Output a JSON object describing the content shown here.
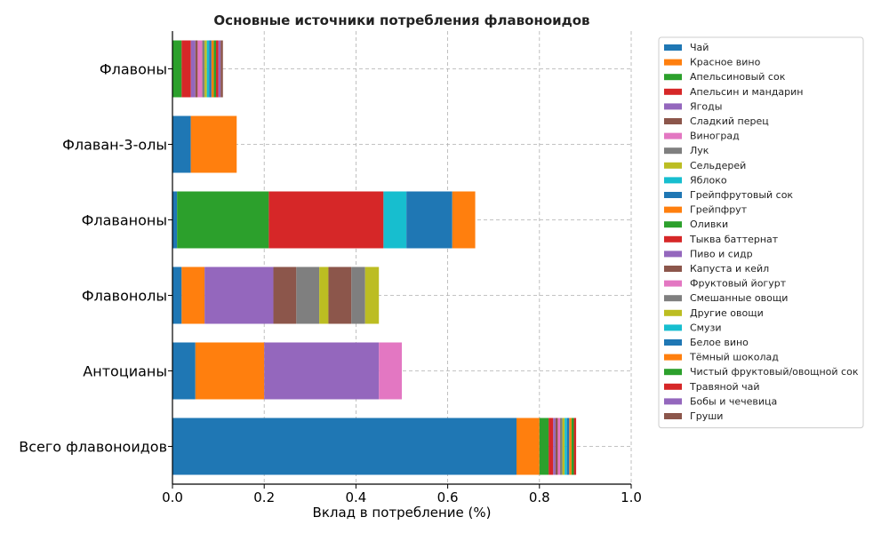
{
  "chart_data": {
    "type": "bar",
    "orientation": "horizontal",
    "stacked": true,
    "title": "Основные источники потребления флавоноидов",
    "xlabel": "Вклад в потребление (%)",
    "ylabel": "",
    "xlim": [
      0,
      1.0
    ],
    "xticks": [
      "0.0",
      "0.2",
      "0.4",
      "0.6",
      "0.8",
      "1.0"
    ],
    "grid": true,
    "legend_position": "right",
    "categories": [
      "Флавоны",
      "Флаван-3-олы",
      "Флаваноны",
      "Флавонолы",
      "Антоцианы",
      "Всего флавоноидов"
    ],
    "series": [
      {
        "name": "Чай",
        "color": "#1f77b4",
        "values": [
          0,
          0.04,
          0.01,
          0.02,
          0.05,
          0.75
        ]
      },
      {
        "name": "Красное вино",
        "color": "#ff7f0e",
        "values": [
          0,
          0.1,
          0,
          0.05,
          0.15,
          0.05
        ]
      },
      {
        "name": "Апельсиновый сок",
        "color": "#2ca02c",
        "values": [
          0.02,
          0,
          0.2,
          0,
          0,
          0.02
        ]
      },
      {
        "name": "Апельсин и мандарин",
        "color": "#d62728",
        "values": [
          0.02,
          0,
          0.25,
          0,
          0,
          0.01
        ]
      },
      {
        "name": "Ягоды",
        "color": "#9467bd",
        "values": [
          0.01,
          0,
          0,
          0.15,
          0.25,
          0.005
        ]
      },
      {
        "name": "Сладкий перец",
        "color": "#8c564b",
        "values": [
          0.005,
          0,
          0,
          0.05,
          0,
          0.005
        ]
      },
      {
        "name": "Виноград",
        "color": "#e377c2",
        "values": [
          0.01,
          0,
          0,
          0,
          0.05,
          0.005
        ]
      },
      {
        "name": "Лук",
        "color": "#7f7f7f",
        "values": [
          0.005,
          0,
          0,
          0.05,
          0,
          0.005
        ]
      },
      {
        "name": "Сельдерей",
        "color": "#bcbd22",
        "values": [
          0.005,
          0,
          0,
          0.02,
          0,
          0.005
        ]
      },
      {
        "name": "Яблоко",
        "color": "#17becf",
        "values": [
          0.005,
          0,
          0.05,
          0,
          0,
          0.005
        ]
      },
      {
        "name": "Грейпфрутовый сок",
        "color": "#1f77b4",
        "values": [
          0.005,
          0,
          0.1,
          0,
          0,
          0.005
        ]
      },
      {
        "name": "Грейпфрут",
        "color": "#ff7f0e",
        "values": [
          0.005,
          0,
          0.05,
          0,
          0,
          0.005
        ]
      },
      {
        "name": "Оливки",
        "color": "#2ca02c",
        "values": [
          0.005,
          0,
          0,
          0,
          0,
          0.005
        ]
      },
      {
        "name": "Тыква баттернат",
        "color": "#d62728",
        "values": [
          0.005,
          0,
          0,
          0,
          0,
          0.005
        ]
      },
      {
        "name": "Пиво и сидр",
        "color": "#9467bd",
        "values": [
          0.005,
          0,
          0,
          0,
          0,
          0
        ]
      },
      {
        "name": "Капуста и кейл",
        "color": "#8c564b",
        "values": [
          0.005,
          0,
          0,
          0.05,
          0,
          0
        ]
      },
      {
        "name": "Фруктовый йогурт",
        "color": "#e377c2",
        "values": [
          0,
          0,
          0,
          0,
          0,
          0
        ]
      },
      {
        "name": "Смешанные овощи",
        "color": "#7f7f7f",
        "values": [
          0,
          0,
          0,
          0.03,
          0,
          0
        ]
      },
      {
        "name": "Другие овощи",
        "color": "#bcbd22",
        "values": [
          0,
          0,
          0,
          0.03,
          0,
          0
        ]
      },
      {
        "name": "Смузи",
        "color": "#17becf",
        "values": [
          0,
          0,
          0,
          0,
          0,
          0
        ]
      },
      {
        "name": "Белое вино",
        "color": "#1f77b4",
        "values": [
          0,
          0,
          0,
          0,
          0,
          0
        ]
      },
      {
        "name": "Тёмный шоколад",
        "color": "#ff7f0e",
        "values": [
          0,
          0,
          0,
          0,
          0,
          0
        ]
      },
      {
        "name": "Чистый фруктовый/овощной сок",
        "color": "#2ca02c",
        "values": [
          0,
          0,
          0,
          0,
          0,
          0
        ]
      },
      {
        "name": "Травяной чай",
        "color": "#d62728",
        "values": [
          0,
          0,
          0,
          0,
          0,
          0
        ]
      },
      {
        "name": "Бобы и чечевица",
        "color": "#9467bd",
        "values": [
          0,
          0,
          0,
          0,
          0,
          0
        ]
      },
      {
        "name": "Груши",
        "color": "#8c564b",
        "values": [
          0,
          0,
          0,
          0,
          0,
          0
        ]
      }
    ]
  }
}
